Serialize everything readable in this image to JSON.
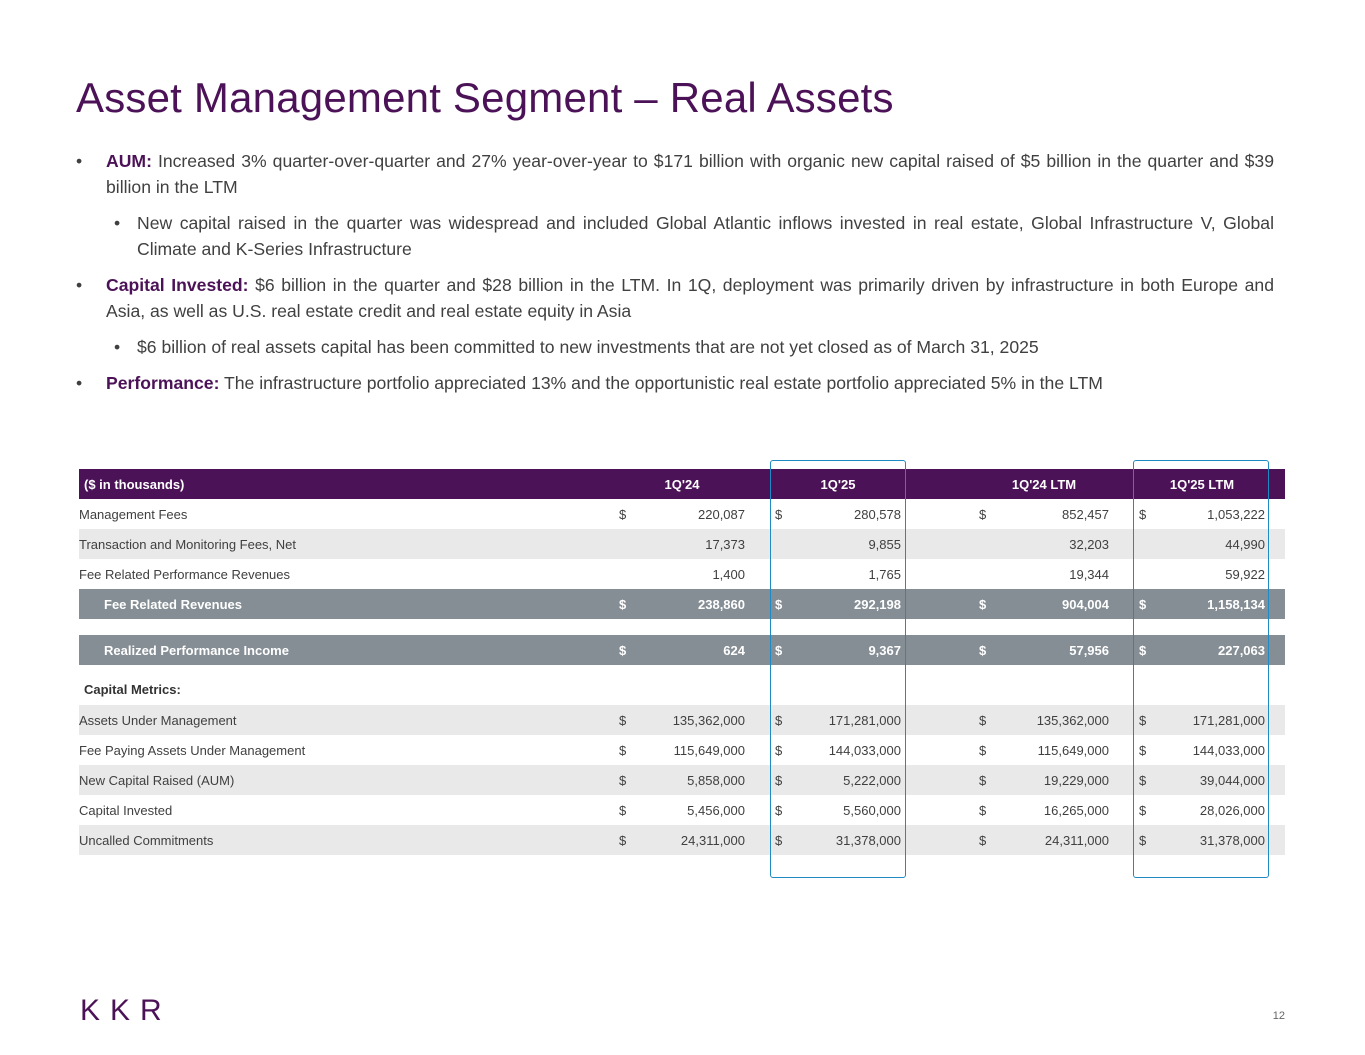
{
  "title": "Asset Management Segment – Real Assets",
  "bullets": [
    {
      "level": 1,
      "bold": "AUM:",
      "text": " Increased 3% quarter-over-quarter and 27% year-over-year to $171 billion with organic new capital raised of $5 billion in the quarter and $39 billion in the LTM"
    },
    {
      "level": 2,
      "bold": "",
      "text": "New capital raised in the quarter was widespread and included Global Atlantic inflows invested in real estate, Global Infrastructure V, Global Climate and K-Series Infrastructure"
    },
    {
      "level": 1,
      "bold": "Capital Invested:",
      "text": " $6 billion in the quarter and $28 billion in the LTM. In 1Q, deployment was primarily driven by infrastructure in both Europe and Asia, as well as U.S. real estate credit and real estate equity in Asia"
    },
    {
      "level": 2,
      "bold": "",
      "text": "$6 billion of real assets capital has been committed to new investments that are not yet closed as of March 31, 2025"
    },
    {
      "level": 1,
      "bold": "Performance:",
      "text": " The infrastructure portfolio appreciated 13% and the opportunistic real estate portfolio appreciated 5% in the LTM"
    }
  ],
  "bullet_symbol": "•",
  "table": {
    "header": [
      "($ in thousands)",
      "1Q'24",
      "1Q'25",
      "1Q'24 LTM",
      "1Q'25 LTM"
    ],
    "currency": "$",
    "rows": [
      {
        "label": "Management Fees",
        "values": [
          "220,087",
          "280,578",
          "852,457",
          "1,053,222"
        ],
        "cur": true
      },
      {
        "label": "Transaction and Monitoring Fees, Net",
        "values": [
          "17,373",
          "9,855",
          "32,203",
          "44,990"
        ],
        "cur": false
      },
      {
        "label": "Fee Related Performance Revenues",
        "values": [
          "1,400",
          "1,765",
          "19,344",
          "59,922"
        ],
        "cur": false
      }
    ],
    "fee_related_revenues": {
      "label": "Fee Related Revenues",
      "values": [
        "238,860",
        "292,198",
        "904,004",
        "1,158,134"
      ]
    },
    "realized_performance_income": {
      "label": "Realized Performance Income",
      "values": [
        "624",
        "9,367",
        "57,956",
        "227,063"
      ]
    },
    "capital_metrics_label": "Capital Metrics:",
    "capital_rows": [
      {
        "label": "Assets Under Management",
        "values": [
          "135,362,000",
          "171,281,000",
          "135,362,000",
          "171,281,000"
        ]
      },
      {
        "label": "Fee Paying Assets Under Management",
        "values": [
          "115,649,000",
          "144,033,000",
          "115,649,000",
          "144,033,000"
        ]
      },
      {
        "label": "New Capital Raised (AUM)",
        "values": [
          "5,858,000",
          "5,222,000",
          "19,229,000",
          "39,044,000"
        ]
      },
      {
        "label": "Capital Invested",
        "values": [
          "5,456,000",
          "5,560,000",
          "16,265,000",
          "28,026,000"
        ]
      },
      {
        "label": "Uncalled Commitments",
        "values": [
          "24,311,000",
          "31,378,000",
          "24,311,000",
          "31,378,000"
        ]
      }
    ]
  },
  "colors": {
    "brand": "#4c1257",
    "total_row": "#858e94",
    "shade_row": "#e9e9e9",
    "highlight": "#1f8ac4"
  },
  "logo": "KKR",
  "page_number": "12"
}
